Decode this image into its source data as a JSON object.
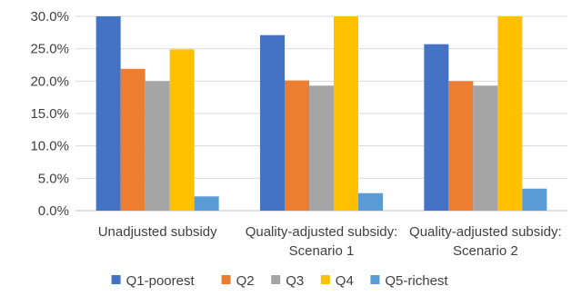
{
  "chart_data": {
    "type": "bar",
    "categories": [
      [
        "Unadjusted subsidy"
      ],
      [
        "Quality-adjusted subsidy:",
        "Scenario 1"
      ],
      [
        "Quality-adjusted subsidy:",
        "Scenario 2"
      ]
    ],
    "series": [
      {
        "name": "Q1-poorest",
        "color": "#4472C4",
        "values": [
          30.0,
          27.1,
          25.7
        ]
      },
      {
        "name": "Q2",
        "color": "#ED7D31",
        "values": [
          21.9,
          20.1,
          20.0
        ]
      },
      {
        "name": "Q3",
        "color": "#A5A5A5",
        "values": [
          20.0,
          19.3,
          19.3
        ]
      },
      {
        "name": "Q4",
        "color": "#FFC000",
        "values": [
          24.9,
          30.0,
          30.0
        ]
      },
      {
        "name": "Q5-richest",
        "color": "#5B9BD5",
        "values": [
          2.2,
          2.7,
          3.4
        ]
      }
    ],
    "ylim": [
      0,
      30
    ],
    "yticks": [
      "0.0%",
      "5.0%",
      "10.0%",
      "15.0%",
      "20.0%",
      "25.0%",
      "30.0%"
    ],
    "ytick_values": [
      0,
      5,
      10,
      15,
      20,
      25,
      30
    ],
    "grid": true,
    "legend_position": "bottom",
    "title": "",
    "xlabel": "",
    "ylabel": ""
  }
}
